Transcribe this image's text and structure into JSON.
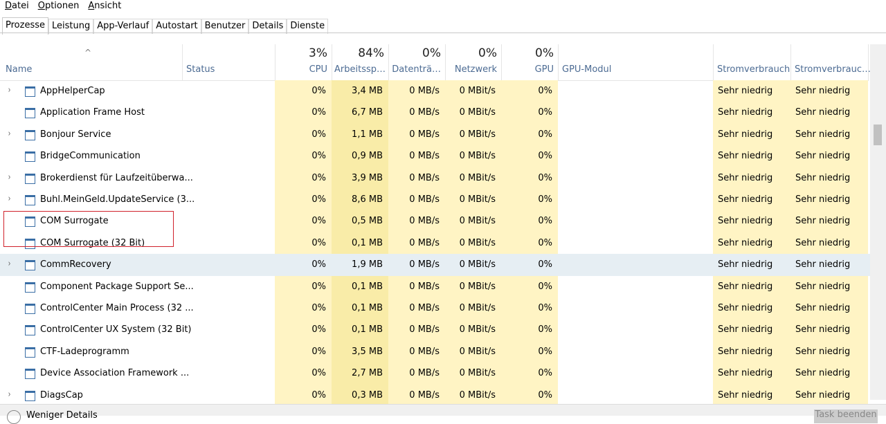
{
  "menu": [
    "Datei",
    "Optionen",
    "Ansicht"
  ],
  "tabs": [
    "Prozesse",
    "Leistung",
    "App-Verlauf",
    "Autostart",
    "Benutzer",
    "Details",
    "Dienste"
  ],
  "columns": [
    {
      "label": "Name"
    },
    {
      "label": "Status"
    },
    {
      "percent": "3%",
      "label": "CPU"
    },
    {
      "percent": "84%",
      "label": "Arbeitssp…"
    },
    {
      "percent": "0%",
      "label": "Datenträ…"
    },
    {
      "percent": "0%",
      "label": "Netzwerk"
    },
    {
      "percent": "0%",
      "label": "GPU"
    },
    {
      "label": "GPU-Modul"
    },
    {
      "label": "Stromverbrauch"
    },
    {
      "label": "Stromverbrauc…"
    }
  ],
  "rows": [
    {
      "name": "AppHelperCap",
      "expandable": true,
      "cpu": "0%",
      "memory": "3,4 MB",
      "disk": "0 MB/s",
      "network": "0 MBit/s",
      "gpu": "0%",
      "power": "Sehr niedrig",
      "power_trend": "Sehr niedrig"
    },
    {
      "name": "Application Frame Host",
      "expandable": false,
      "cpu": "0%",
      "memory": "6,7 MB",
      "disk": "0 MB/s",
      "network": "0 MBit/s",
      "gpu": "0%",
      "power": "Sehr niedrig",
      "power_trend": "Sehr niedrig"
    },
    {
      "name": "Bonjour Service",
      "expandable": true,
      "cpu": "0%",
      "memory": "1,1 MB",
      "disk": "0 MB/s",
      "network": "0 MBit/s",
      "gpu": "0%",
      "power": "Sehr niedrig",
      "power_trend": "Sehr niedrig"
    },
    {
      "name": "BridgeCommunication",
      "expandable": false,
      "cpu": "0%",
      "memory": "0,9 MB",
      "disk": "0 MB/s",
      "network": "0 MBit/s",
      "gpu": "0%",
      "power": "Sehr niedrig",
      "power_trend": "Sehr niedrig"
    },
    {
      "name": "Brokerdienst für Laufzeitüberwa...",
      "expandable": true,
      "cpu": "0%",
      "memory": "3,9 MB",
      "disk": "0 MB/s",
      "network": "0 MBit/s",
      "gpu": "0%",
      "power": "Sehr niedrig",
      "power_trend": "Sehr niedrig"
    },
    {
      "name": "Buhl.MeinGeld.UpdateService (3...",
      "expandable": true,
      "cpu": "0%",
      "memory": "8,6 MB",
      "disk": "0 MB/s",
      "network": "0 MBit/s",
      "gpu": "0%",
      "power": "Sehr niedrig",
      "power_trend": "Sehr niedrig"
    },
    {
      "name": "COM Surrogate",
      "expandable": false,
      "cpu": "0%",
      "memory": "0,5 MB",
      "disk": "0 MB/s",
      "network": "0 MBit/s",
      "gpu": "0%",
      "power": "Sehr niedrig",
      "power_trend": "Sehr niedrig"
    },
    {
      "name": "COM Surrogate (32 Bit)",
      "expandable": false,
      "cpu": "0%",
      "memory": "0,1 MB",
      "disk": "0 MB/s",
      "network": "0 MBit/s",
      "gpu": "0%",
      "power": "Sehr niedrig",
      "power_trend": "Sehr niedrig"
    },
    {
      "name": "CommRecovery",
      "expandable": true,
      "cpu": "0%",
      "memory": "1,9 MB",
      "disk": "0 MB/s",
      "network": "0 MBit/s",
      "gpu": "0%",
      "power": "Sehr niedrig",
      "power_trend": "Sehr niedrig"
    },
    {
      "name": "Component Package Support Se...",
      "expandable": false,
      "cpu": "0%",
      "memory": "0,1 MB",
      "disk": "0 MB/s",
      "network": "0 MBit/s",
      "gpu": "0%",
      "power": "Sehr niedrig",
      "power_trend": "Sehr niedrig"
    },
    {
      "name": "ControlCenter Main Process (32 ...",
      "expandable": false,
      "cpu": "0%",
      "memory": "0,1 MB",
      "disk": "0 MB/s",
      "network": "0 MBit/s",
      "gpu": "0%",
      "power": "Sehr niedrig",
      "power_trend": "Sehr niedrig"
    },
    {
      "name": "ControlCenter UX System (32 Bit)",
      "expandable": false,
      "cpu": "0%",
      "memory": "0,1 MB",
      "disk": "0 MB/s",
      "network": "0 MBit/s",
      "gpu": "0%",
      "power": "Sehr niedrig",
      "power_trend": "Sehr niedrig"
    },
    {
      "name": "CTF-Ladeprogramm",
      "expandable": false,
      "cpu": "0%",
      "memory": "3,5 MB",
      "disk": "0 MB/s",
      "network": "0 MBit/s",
      "gpu": "0%",
      "power": "Sehr niedrig",
      "power_trend": "Sehr niedrig"
    },
    {
      "name": "Device Association Framework ...",
      "expandable": false,
      "cpu": "0%",
      "memory": "2,7 MB",
      "disk": "0 MB/s",
      "network": "0 MBit/s",
      "gpu": "0%",
      "power": "Sehr niedrig",
      "power_trend": "Sehr niedrig"
    },
    {
      "name": "DiagsCap",
      "expandable": true,
      "cpu": "0%",
      "memory": "0,3 MB",
      "disk": "0 MB/s",
      "network": "0 MBit/s",
      "gpu": "0%",
      "power": "Sehr niedrig",
      "power_trend": "Sehr niedrig"
    }
  ],
  "footer": {
    "less_details": "Weniger Details",
    "end_task": "Task beenden"
  }
}
